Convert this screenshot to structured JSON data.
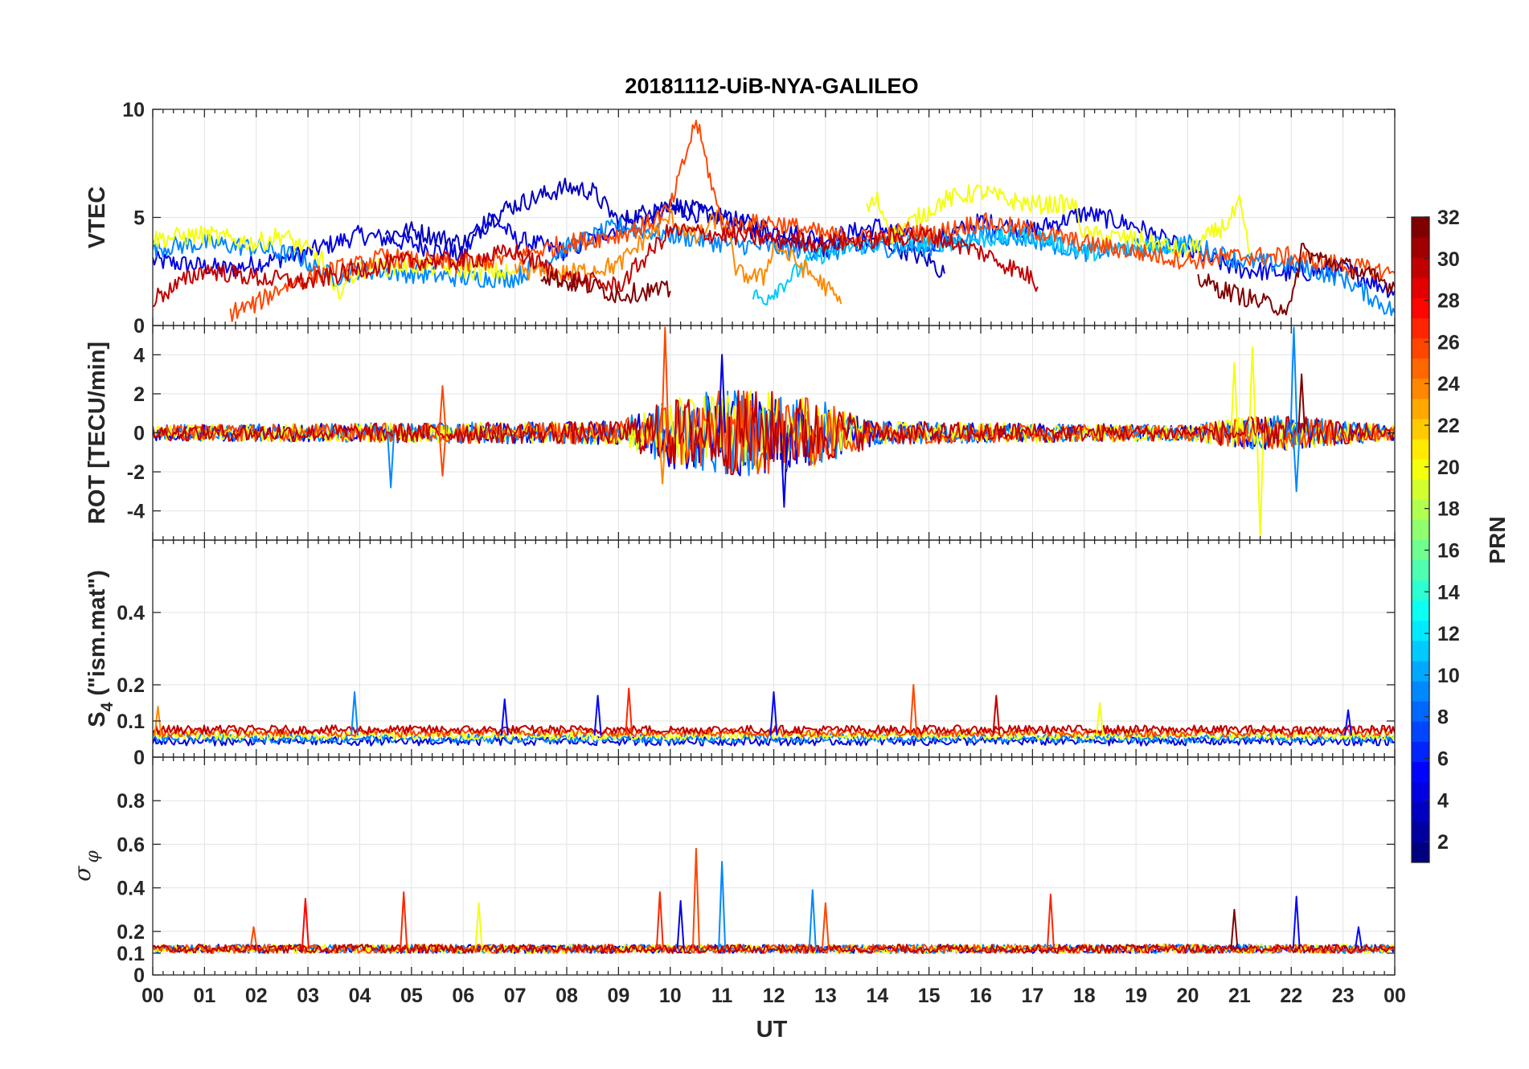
{
  "chart_data": {
    "type": "line",
    "title": "20181112-UiB-NYA-GALILEO",
    "xlabel": "UT",
    "x_ticks": [
      "00",
      "01",
      "02",
      "03",
      "04",
      "05",
      "06",
      "07",
      "08",
      "09",
      "10",
      "11",
      "12",
      "13",
      "14",
      "15",
      "16",
      "17",
      "18",
      "19",
      "20",
      "21",
      "22",
      "23",
      "00"
    ],
    "xlim_hours": [
      0,
      24
    ],
    "grid": true,
    "panels": [
      {
        "id": "vtec",
        "ylabel": "VTEC",
        "ylim": [
          0,
          10
        ],
        "y_ticks": [
          0,
          5,
          10
        ],
        "y_tick_labels": [
          "0",
          "5",
          "10"
        ],
        "series": [
          {
            "prn": 4,
            "x": [
              0,
              1.5,
              3,
              4,
              5,
              6,
              6.5,
              7,
              8,
              9,
              10,
              11,
              12,
              13,
              14,
              15,
              16,
              17,
              18,
              19,
              20,
              21,
              22,
              23,
              24
            ],
            "y": [
              3.0,
              2.6,
              3.4,
              4.2,
              3.8,
              3.2,
              5.2,
              4.0,
              3.4,
              4.6,
              5.4,
              5.0,
              4.4,
              4.0,
              4.6,
              3.8,
              4.8,
              4.4,
              5.2,
              4.6,
              3.4,
              2.6,
              2.4,
              2.6,
              1.6
            ]
          },
          {
            "prn": 3,
            "x": [
              4.5,
              5,
              6,
              6.8,
              7.5,
              8,
              8.5,
              9,
              10,
              11,
              12,
              13,
              14,
              15,
              15.3
            ],
            "y": [
              4.2,
              4.4,
              3.8,
              5.4,
              6.0,
              6.4,
              6.2,
              4.8,
              5.6,
              5.0,
              4.0,
              3.6,
              4.0,
              3.0,
              2.4
            ]
          },
          {
            "prn": 9,
            "x": [
              0,
              1,
              2,
              2.8,
              3.5,
              4,
              5,
              6,
              7,
              8,
              9,
              10,
              11,
              12,
              13,
              14,
              15,
              16,
              17,
              18,
              19,
              20,
              21,
              22,
              23,
              24
            ],
            "y": [
              3.6,
              3.8,
              3.6,
              3.2,
              2.2,
              2.6,
              2.4,
              2.2,
              2.2,
              3.6,
              4.6,
              4.2,
              3.8,
              3.6,
              3.4,
              3.6,
              3.6,
              4.2,
              4.0,
              3.4,
              3.6,
              3.8,
              3.0,
              2.8,
              2.2,
              0.6
            ]
          },
          {
            "prn": 11,
            "x": [
              11.6,
              11.8,
              12.2,
              12.8,
              13.4,
              14,
              15,
              16,
              17,
              18,
              19,
              20
            ],
            "y": [
              1.4,
              1.2,
              2.0,
              3.2,
              3.6,
              3.8,
              3.8,
              4.0,
              4.2,
              3.4,
              3.6,
              3.8
            ]
          },
          {
            "prn": 20,
            "x": [
              0,
              1,
              2,
              2.5,
              3.3,
              3.5,
              4,
              5,
              6,
              7,
              13.8,
              14,
              14.3,
              15.3,
              16,
              16.5,
              17,
              17.8,
              18,
              19,
              20,
              20.8,
              21,
              21.2
            ],
            "y": [
              4.0,
              4.2,
              3.8,
              4.2,
              3.0,
              1.4,
              2.6,
              2.8,
              2.6,
              2.4,
              5.4,
              5.8,
              4.2,
              5.8,
              6.2,
              5.8,
              5.6,
              5.6,
              4.2,
              4.0,
              3.4,
              4.8,
              5.6,
              3.2
            ]
          },
          {
            "prn": 24,
            "x": [
              7,
              8,
              9,
              9.5,
              10,
              10.5,
              11,
              11.3,
              11.8,
              12,
              12.5,
              13,
              13.3
            ],
            "y": [
              2.6,
              2.4,
              2.8,
              4.0,
              5.0,
              4.0,
              5.2,
              2.4,
              2.2,
              3.8,
              2.8,
              1.8,
              1.0
            ]
          },
          {
            "prn": 26,
            "x": [
              1.5,
              2,
              2.5,
              3,
              3.5,
              4,
              4.5,
              5,
              6,
              7,
              8,
              9,
              9.5,
              10,
              10.5,
              11,
              12,
              13,
              14,
              14.6,
              15,
              16,
              17,
              18,
              19,
              20,
              21,
              22,
              23,
              24
            ],
            "y": [
              0.6,
              1.0,
              1.8,
              2.2,
              2.6,
              2.8,
              3.2,
              3.0,
              2.8,
              3.2,
              3.8,
              4.2,
              4.6,
              5.4,
              9.5,
              4.6,
              4.8,
              4.2,
              4.0,
              4.4,
              4.2,
              4.8,
              4.4,
              3.8,
              3.4,
              3.0,
              3.2,
              3.2,
              2.8,
              2.4
            ]
          },
          {
            "prn": 30,
            "x": [
              0,
              1,
              2,
              3,
              4,
              5,
              6,
              7,
              7.5,
              8,
              9,
              10,
              11,
              12,
              13,
              14,
              15,
              16,
              17,
              17.1
            ],
            "y": [
              1.2,
              2.6,
              2.2,
              2.0,
              2.6,
              3.0,
              3.0,
              3.4,
              2.8,
              2.2,
              1.8,
              4.4,
              4.2,
              4.0,
              3.8,
              4.0,
              4.2,
              3.4,
              2.2,
              1.8
            ]
          },
          {
            "prn": 32,
            "x": [
              7.5,
              8,
              8.5,
              9,
              9.5,
              10,
              20.2,
              20.5,
              21,
              21.5,
              22,
              22.2,
              22.4,
              23,
              24
            ],
            "y": [
              2.4,
              2.0,
              1.8,
              1.4,
              1.6,
              1.6,
              2.2,
              1.8,
              1.4,
              1.0,
              0.8,
              3.6,
              3.2,
              2.8,
              1.8
            ]
          }
        ]
      },
      {
        "id": "rot",
        "ylabel": "ROT [TECU/min]",
        "ylim": [
          -5.5,
          5.5
        ],
        "y_ticks": [
          -4,
          -2,
          0,
          2,
          4
        ],
        "y_tick_labels": [
          "-4",
          "-2",
          "0",
          "2",
          "4"
        ],
        "baseline": 0,
        "noise_envelope": [
          {
            "x": [
              0,
              9,
              10,
              11,
              12,
              13,
              14,
              20,
              21,
              22,
              23,
              24
            ],
            "amp": [
              0.4,
              0.6,
              1.8,
              2.2,
              2.2,
              1.6,
              0.6,
              0.4,
              0.8,
              0.9,
              0.6,
              0.4
            ]
          }
        ],
        "spikes": [
          {
            "prn": 26,
            "x": 9.9,
            "y": 5.4
          },
          {
            "prn": 24,
            "x": 9.85,
            "y": -2.6
          },
          {
            "prn": 4,
            "x": 12.2,
            "y": -3.8
          },
          {
            "prn": 4,
            "x": 11.0,
            "y": 4.0
          },
          {
            "prn": 20,
            "x": 21.4,
            "y": -5.3
          },
          {
            "prn": 20,
            "x": 21.25,
            "y": 4.4
          },
          {
            "prn": 20,
            "x": 20.9,
            "y": 3.6
          },
          {
            "prn": 9,
            "x": 22.05,
            "y": 5.4
          },
          {
            "prn": 9,
            "x": 22.1,
            "y": -3.0
          },
          {
            "prn": 9,
            "x": 4.6,
            "y": -2.8
          },
          {
            "prn": 26,
            "x": 5.6,
            "y": 2.4
          },
          {
            "prn": 26,
            "x": 5.6,
            "y": -2.2
          },
          {
            "prn": 32,
            "x": 22.2,
            "y": 3.0
          }
        ]
      },
      {
        "id": "s4",
        "ylabel": "S4 (\"ism.mat\")",
        "ylabel_main": "S",
        "ylabel_sub": "4",
        "ylabel_rest": " (\"ism.mat\")",
        "ylim": [
          0,
          0.6
        ],
        "y_ticks": [
          0,
          0.1,
          0.2,
          0.4
        ],
        "y_tick_labels": [
          "0",
          "0.1",
          "0.2",
          "0.4"
        ],
        "baseline": 0.06,
        "spikes": [
          {
            "prn": 27,
            "x": 9.2,
            "y": 0.19
          },
          {
            "prn": 26,
            "x": 14.7,
            "y": 0.2
          },
          {
            "prn": 9,
            "x": 3.9,
            "y": 0.18
          },
          {
            "prn": 5,
            "x": 12.0,
            "y": 0.18
          },
          {
            "prn": 5,
            "x": 8.6,
            "y": 0.17
          },
          {
            "prn": 5,
            "x": 6.8,
            "y": 0.16
          },
          {
            "prn": 20,
            "x": 18.3,
            "y": 0.15
          },
          {
            "prn": 24,
            "x": 0.1,
            "y": 0.14
          },
          {
            "prn": 30,
            "x": 16.3,
            "y": 0.17
          },
          {
            "prn": 5,
            "x": 23.1,
            "y": 0.13
          }
        ]
      },
      {
        "id": "sigma_phi",
        "ylabel": "σ φ",
        "ylabel_main": "σ",
        "ylabel_sub": "φ",
        "ylim": [
          0,
          1.0
        ],
        "y_ticks": [
          0,
          0.1,
          0.2,
          0.4,
          0.6,
          0.8
        ],
        "y_tick_labels": [
          "0",
          "0.1",
          "0.2",
          "0.4",
          "0.6",
          "0.8"
        ],
        "baseline": 0.12,
        "spikes": [
          {
            "prn": 26,
            "x": 10.5,
            "y": 0.58
          },
          {
            "prn": 9,
            "x": 11.0,
            "y": 0.52
          },
          {
            "prn": 28,
            "x": 2.95,
            "y": 0.35
          },
          {
            "prn": 27,
            "x": 4.85,
            "y": 0.38
          },
          {
            "prn": 20,
            "x": 6.3,
            "y": 0.33
          },
          {
            "prn": 27,
            "x": 9.8,
            "y": 0.38
          },
          {
            "prn": 9,
            "x": 12.75,
            "y": 0.39
          },
          {
            "prn": 26,
            "x": 13.0,
            "y": 0.33
          },
          {
            "prn": 27,
            "x": 17.35,
            "y": 0.37
          },
          {
            "prn": 5,
            "x": 22.1,
            "y": 0.36
          },
          {
            "prn": 32,
            "x": 20.9,
            "y": 0.3
          },
          {
            "prn": 4,
            "x": 10.2,
            "y": 0.34
          },
          {
            "prn": 26,
            "x": 1.95,
            "y": 0.22
          },
          {
            "prn": 5,
            "x": 23.3,
            "y": 0.22
          }
        ]
      }
    ],
    "colorbar": {
      "label": "PRN",
      "colormap": "jet",
      "range": [
        1,
        32
      ],
      "ticks": [
        2,
        4,
        6,
        8,
        10,
        12,
        14,
        16,
        18,
        20,
        22,
        24,
        26,
        28,
        30,
        32
      ],
      "tick_labels": [
        "2",
        "4",
        "6",
        "8",
        "10",
        "12",
        "14",
        "16",
        "18",
        "20",
        "22",
        "24",
        "26",
        "28",
        "30",
        "32"
      ],
      "placement": "right"
    }
  }
}
